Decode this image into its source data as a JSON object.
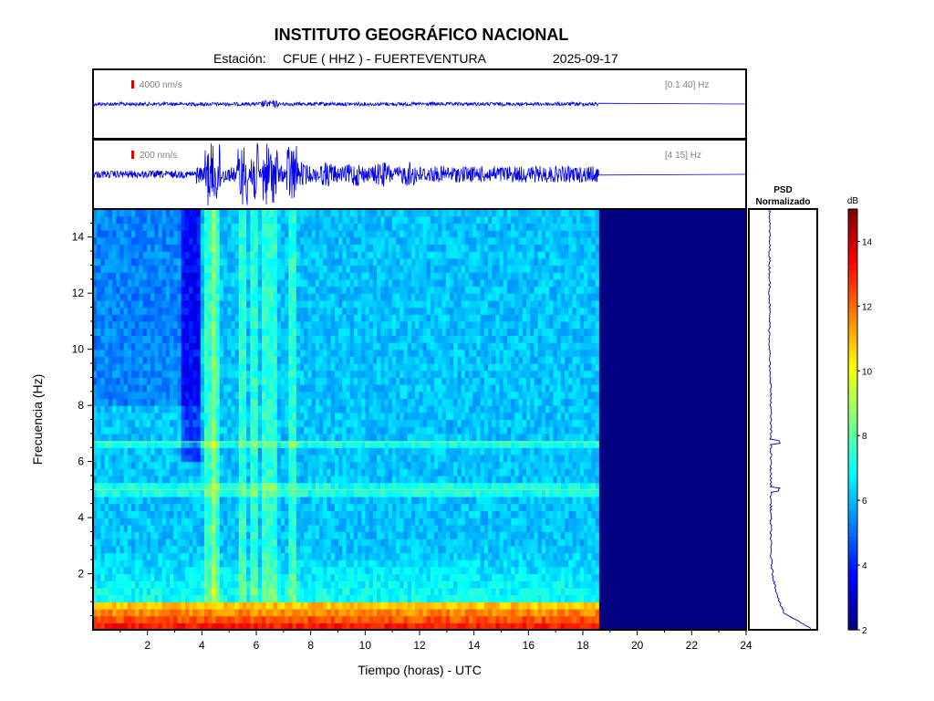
{
  "header": {
    "title": "INSTITUTO GEOGRÁFICO NACIONAL",
    "station_label": "Estación:",
    "station": "CFUE ( HHZ ) - FUERTEVENTURA",
    "date": "2025-09-17"
  },
  "chart_data": [
    {
      "type": "line",
      "panel": "seismogram-broadband",
      "scale_label": "4000 nm/s",
      "band_label": "[0.1 40] Hz",
      "data_end_hour": 18.6,
      "amplitude_note": "low, nearly flat trace"
    },
    {
      "type": "line",
      "panel": "seismogram-filtered",
      "scale_label": "200 nm/s",
      "band_label": "[4 15] Hz",
      "data_end_hour": 18.6,
      "bursts_hours": [
        4.3,
        4.5,
        5.5,
        5.9,
        6.4,
        6.6,
        7.3
      ]
    },
    {
      "type": "heatmap",
      "panel": "spectrogram",
      "xlabel": "Tiempo (horas) - UTC",
      "ylabel": "Frecuencia  (Hz)",
      "xlim": [
        0,
        24
      ],
      "ylim": [
        0,
        15
      ],
      "xticks": [
        2,
        4,
        6,
        8,
        10,
        12,
        14,
        16,
        18,
        20,
        22,
        24
      ],
      "yticks": [
        2,
        4,
        6,
        8,
        10,
        12,
        14
      ],
      "data_end_hour": 18.6,
      "spectral_lines_hz": [
        6.7,
        5.0
      ],
      "noise_band_hz": [
        0,
        1
      ]
    },
    {
      "type": "line",
      "panel": "psd",
      "title_line1": "PSD",
      "title_line2": "Normalizado",
      "peaks_hz": [
        6.7,
        5.0
      ]
    },
    {
      "type": "colorbar",
      "label": "dB",
      "range": [
        2,
        15
      ],
      "ticks": [
        2,
        4,
        6,
        8,
        10,
        12,
        14
      ]
    }
  ]
}
